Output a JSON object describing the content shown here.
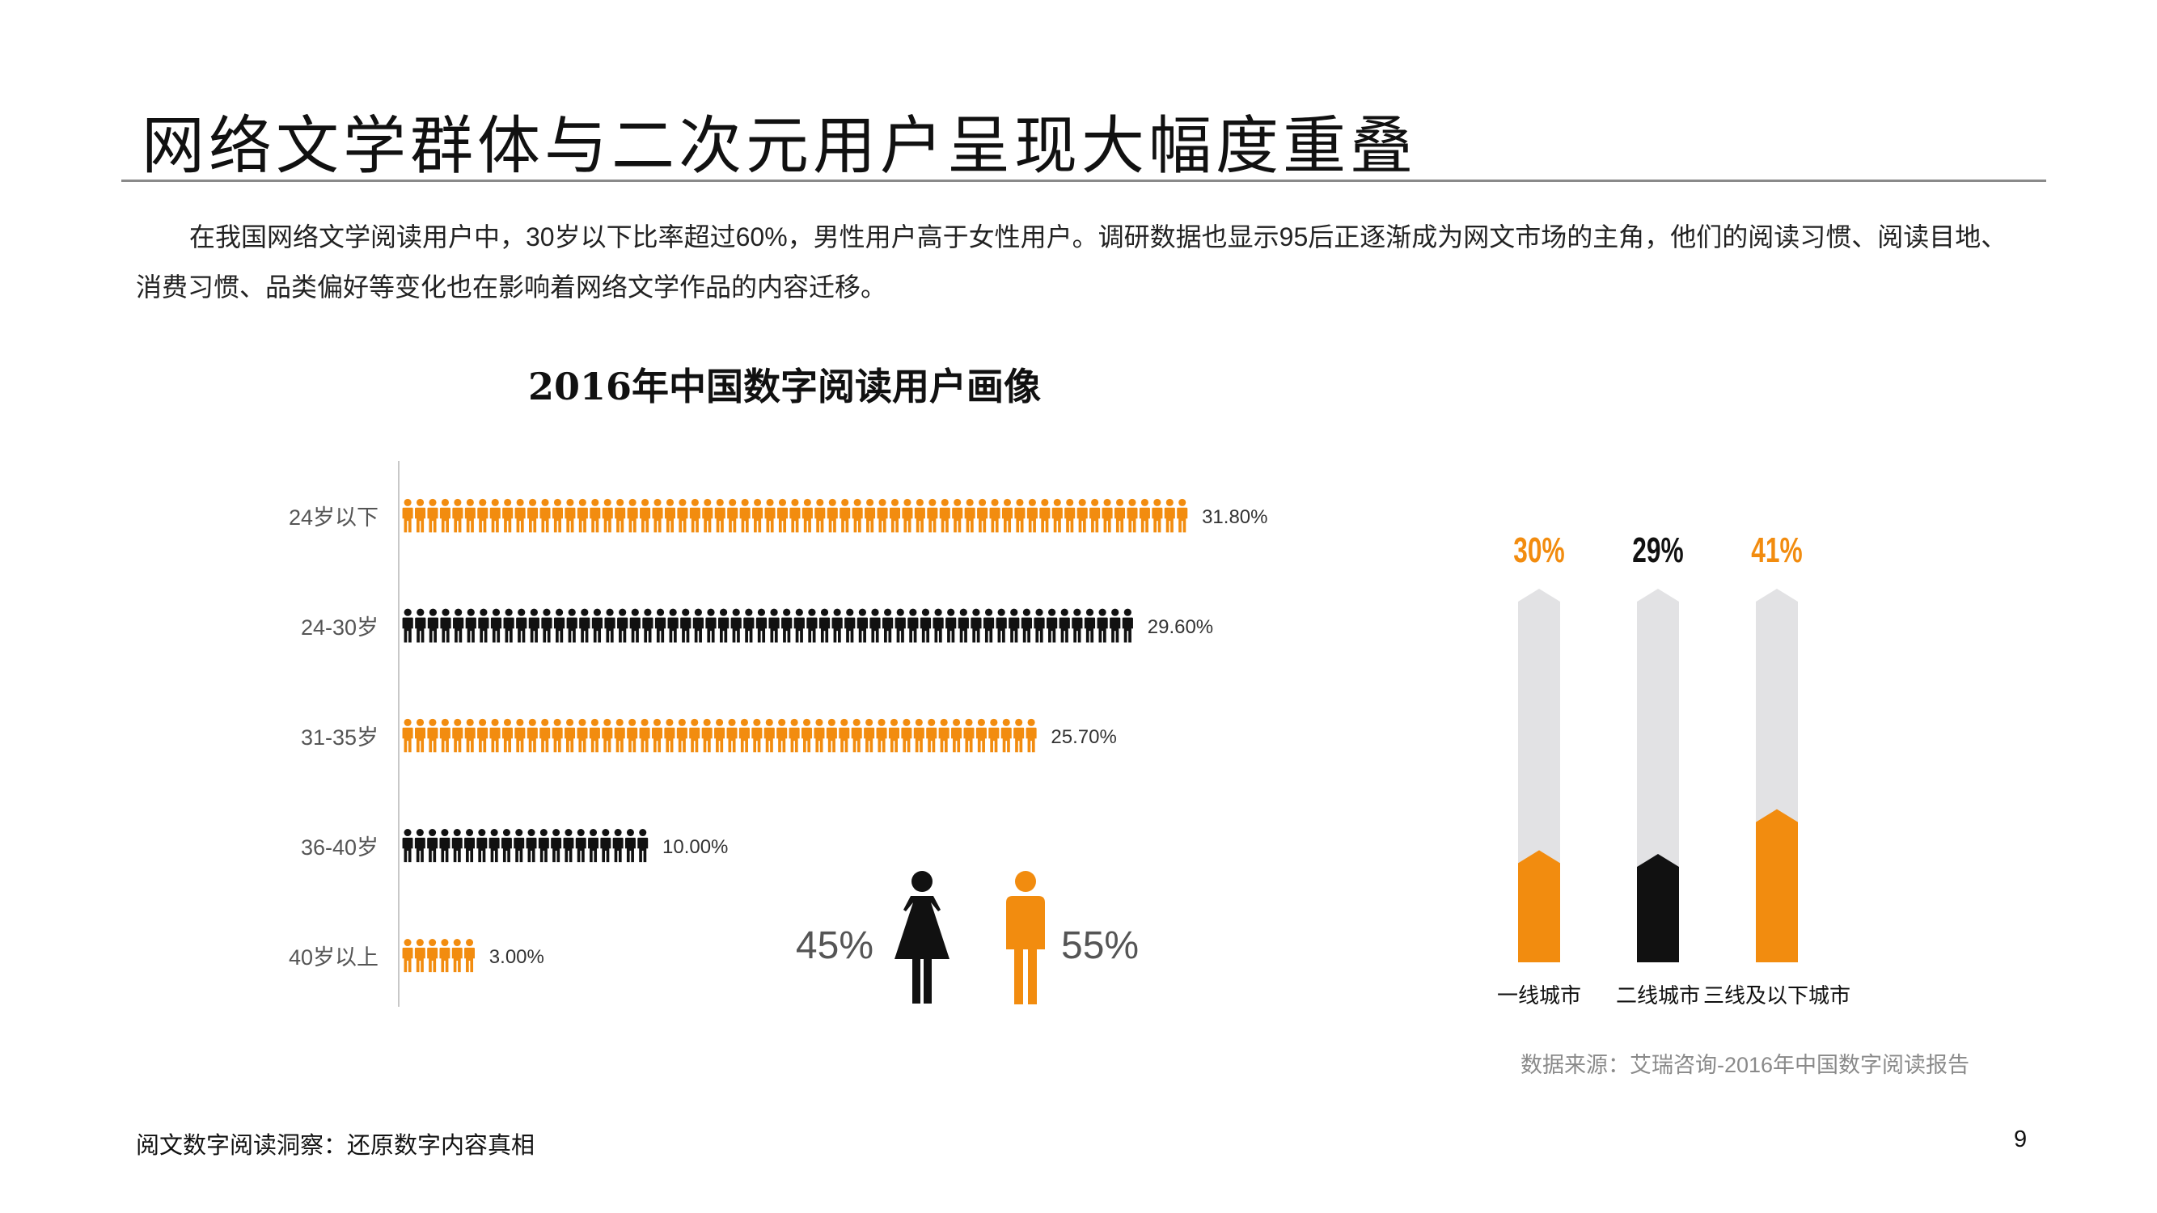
{
  "header": {
    "title": "网络文学群体与二次元用户呈现大幅度重叠",
    "intro": "在我国网络文学阅读用户中，30岁以下比率超过60%，男性用户高于女性用户。调研数据也显示95后正逐渐成为网文市场的主角，他们的阅读习惯、阅读目地、消费习惯、品类偏好等变化也在影响着网络文学作品的内容迁移。"
  },
  "chart_title": "2016年中国数字阅读用户画像",
  "colors": {
    "orange": "#f28c0f",
    "black": "#111111",
    "track": "#e2e2e4",
    "source_gray": "#8a8a8a"
  },
  "chart_data": [
    {
      "type": "bar",
      "orientation": "horizontal",
      "mark": "pictogram-person",
      "categories": [
        "24岁以下",
        "24-30岁",
        "31-35岁",
        "36-40岁",
        "40岁以上"
      ],
      "values": [
        31.8,
        29.6,
        25.7,
        10.0,
        3.0
      ],
      "value_labels": [
        "31.80%",
        "29.60%",
        "25.70%",
        "10.00%",
        "3.00%"
      ],
      "series_colors": [
        "orange",
        "black",
        "orange",
        "black",
        "orange"
      ]
    },
    {
      "type": "pie",
      "mark": "gender-icons",
      "categories": [
        "female",
        "male"
      ],
      "values": [
        45,
        55
      ],
      "value_labels": [
        "45%",
        "55%"
      ],
      "icons": [
        "female-figure-icon",
        "male-figure-icon"
      ]
    },
    {
      "type": "bar",
      "orientation": "vertical",
      "mark": "thermometer",
      "categories": [
        "一线城市",
        "二线城市",
        "三线及以下城市"
      ],
      "values": [
        30,
        29,
        41
      ],
      "value_labels": [
        "30%",
        "29%",
        "41%"
      ],
      "series_colors": [
        "orange",
        "black",
        "orange"
      ],
      "ylim": [
        0,
        100
      ]
    }
  ],
  "source": "数据来源：艾瑞咨询-2016年中国数字阅读报告",
  "footer": {
    "left": "阅文数字阅读洞察：还原数字内容真相",
    "page": "9"
  }
}
